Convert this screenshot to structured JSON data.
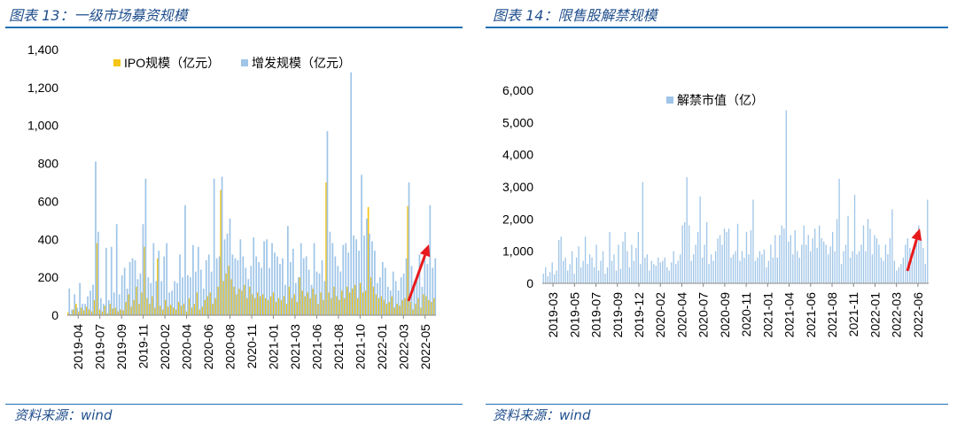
{
  "panels": {
    "left": {
      "title": "图表 13：一级市场募资规模",
      "source": "资料来源：wind"
    },
    "right": {
      "title": "图表 14：限售股解禁规模",
      "source": "资料来源：wind"
    }
  },
  "colors": {
    "ipo": "#f5c518",
    "additional": "#9fc5e8",
    "unlock": "#9fc5e8",
    "arrow": "#e8191c",
    "rule": "#1f6fb5",
    "title": "#1f4e8c"
  },
  "chart_data": [
    {
      "type": "bar",
      "stacked": false,
      "title": "",
      "xlabel": "",
      "ylabel": "",
      "ylim": [
        0,
        1400
      ],
      "yticks": [
        "0",
        "200",
        "400",
        "600",
        "800",
        "1,000",
        "1,200",
        "1,400"
      ],
      "xtick_labels": [
        "2019-04",
        "2019-07",
        "2019-09",
        "2019-11",
        "2020-02",
        "2020-04",
        "2020-06",
        "2020-08",
        "2020-11",
        "2021-01",
        "2021-03",
        "2021-06",
        "2021-08",
        "2021-10",
        "2022-01",
        "2022-03",
        "2022-05"
      ],
      "legend_position": "top",
      "grid": false,
      "annotation": "red upward arrow near 2022-05",
      "series": [
        {
          "name": "IPO规模（亿元）",
          "color": "#f5c518",
          "values": [
            15,
            5,
            30,
            60,
            20,
            40,
            25,
            45,
            30,
            20,
            80,
            380,
            30,
            20,
            50,
            10,
            60,
            35,
            40,
            20,
            30,
            25,
            70,
            110,
            45,
            80,
            150,
            60,
            120,
            360,
            90,
            60,
            100,
            40,
            300,
            50,
            30,
            80,
            45,
            55,
            40,
            30,
            70,
            50,
            60,
            20,
            90,
            40,
            60,
            120,
            30,
            45,
            80,
            100,
            120,
            60,
            90,
            150,
            660,
            180,
            220,
            260,
            190,
            150,
            110,
            140,
            130,
            160,
            90,
            150,
            110,
            90,
            120,
            100,
            110,
            90,
            80,
            100,
            120,
            70,
            90,
            80,
            100,
            60,
            150,
            90,
            110,
            70,
            200,
            130,
            100,
            120,
            90,
            140,
            110,
            60,
            120,
            80,
            700,
            120,
            90,
            150,
            100,
            80,
            130,
            90,
            150,
            120,
            140,
            160,
            90,
            170,
            120,
            130,
            570,
            200,
            150,
            110,
            90,
            100,
            80,
            60,
            70,
            100,
            40,
            60,
            50,
            80,
            90,
            575,
            70,
            30,
            60,
            90,
            40,
            110,
            100,
            80,
            70,
            90
          ]
        },
        {
          "name": "增发规模（亿元）",
          "color": "#9fc5e8",
          "values": [
            140,
            30,
            110,
            40,
            170,
            60,
            60,
            100,
            130,
            160,
            810,
            440,
            90,
            60,
            355,
            80,
            360,
            120,
            480,
            110,
            210,
            250,
            140,
            280,
            300,
            290,
            190,
            220,
            480,
            720,
            200,
            170,
            380,
            180,
            340,
            180,
            310,
            380,
            120,
            130,
            180,
            170,
            320,
            200,
            580,
            210,
            200,
            370,
            230,
            360,
            240,
            140,
            290,
            320,
            230,
            720,
            300,
            310,
            730,
            400,
            430,
            510,
            320,
            300,
            290,
            400,
            310,
            250,
            190,
            260,
            410,
            310,
            280,
            250,
            390,
            400,
            250,
            380,
            330,
            310,
            270,
            300,
            160,
            470,
            280,
            350,
            170,
            200,
            380,
            300,
            310,
            240,
            160,
            380,
            230,
            220,
            290,
            180,
            970,
            440,
            380,
            310,
            260,
            230,
            370,
            380,
            330,
            1280,
            420,
            400,
            340,
            740,
            420,
            510,
            430,
            390,
            340,
            170,
            200,
            280,
            250,
            150,
            130,
            230,
            180,
            130,
            200,
            220,
            300,
            700,
            260,
            180,
            200,
            320,
            150,
            340,
            270,
            580,
            250,
            300
          ]
        }
      ]
    },
    {
      "type": "bar",
      "title": "",
      "xlabel": "",
      "ylabel": "",
      "ylim": [
        0,
        6000
      ],
      "yticks": [
        "0",
        "1,000",
        "2,000",
        "3,000",
        "4,000",
        "5,000",
        "6,000"
      ],
      "xtick_labels": [
        "2019-03",
        "2019-05",
        "2019-07",
        "2019-09",
        "2019-12",
        "2020-02",
        "2020-04",
        "2020-07",
        "2020-09",
        "2020-11",
        "2021-01",
        "2021-04",
        "2021-06",
        "2021-08",
        "2021-11",
        "2022-01",
        "2022-03",
        "2022-06"
      ],
      "legend_position": "top",
      "grid": false,
      "annotation": "red upward arrow near 2022-06",
      "series": [
        {
          "name": "解禁市值（亿）",
          "color": "#9fc5e8",
          "values": [
            300,
            500,
            220,
            350,
            650,
            280,
            400,
            1350,
            1450,
            700,
            800,
            400,
            600,
            1000,
            300,
            800,
            1150,
            500,
            700,
            1450,
            600,
            900,
            800,
            500,
            1200,
            400,
            700,
            1000,
            300,
            500,
            1600,
            700,
            900,
            400,
            1200,
            450,
            1300,
            1600,
            1000,
            500,
            1200,
            700,
            1100,
            1600,
            600,
            3150,
            800,
            900,
            400,
            700,
            600,
            550,
            800,
            650,
            700,
            800,
            500,
            400,
            650,
            1000,
            600,
            700,
            900,
            1800,
            1900,
            3300,
            1800,
            700,
            900,
            1200,
            1600,
            2700,
            800,
            1200,
            1900,
            600,
            900,
            700,
            1000,
            1400,
            1500,
            1200,
            1700,
            1600,
            1700,
            800,
            900,
            1000,
            1850,
            700,
            1000,
            800,
            1600,
            900,
            1650,
            2600,
            700,
            800,
            1000,
            900,
            1050,
            500,
            700,
            1200,
            800,
            1500,
            800,
            1500,
            1800,
            1700,
            5380,
            1300,
            1500,
            900,
            1650,
            1000,
            800,
            1200,
            1800,
            1200,
            1500,
            1000,
            1400,
            1700,
            1100,
            1800,
            1400,
            1300,
            1200,
            900,
            1150,
            1600,
            1000,
            2000,
            3250,
            600,
            1000,
            1200,
            2100,
            800,
            1000,
            2750,
            900,
            1000,
            1200,
            1800,
            1000,
            2000,
            1700,
            900,
            1500,
            1400,
            1200,
            800,
            700,
            1200,
            900,
            1400,
            2300,
            700,
            400,
            500,
            600,
            800,
            1200,
            1400,
            1100,
            700,
            1200,
            1600,
            1800,
            1400,
            1100,
            600,
            2600
          ]
        }
      ]
    }
  ]
}
